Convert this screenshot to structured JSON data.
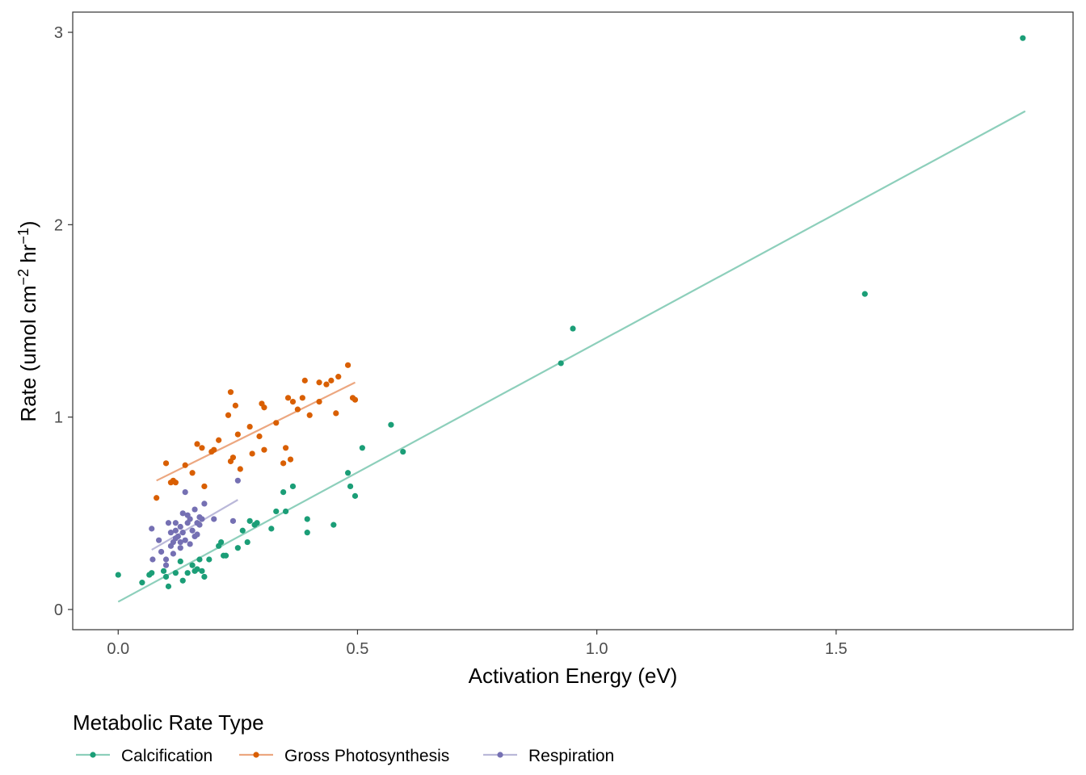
{
  "chart_data": {
    "type": "scatter",
    "xlabel": "Activation Energy (eV)",
    "ylabel": {
      "main": "Rate (umol cm",
      "sup1": "−2",
      "mid": " hr",
      "sup2": "−1",
      "end": ")"
    },
    "xlim": [
      -0.095,
      1.995
    ],
    "ylim": [
      -0.105,
      3.105
    ],
    "x_ticks": [
      0.0,
      0.5,
      1.0,
      1.5
    ],
    "x_tick_labels": [
      "0.0",
      "0.5",
      "1.0",
      "1.5"
    ],
    "y_ticks": [
      0,
      1,
      2,
      3
    ],
    "y_tick_labels": [
      "0",
      "1",
      "2",
      "3"
    ],
    "grid": false,
    "legend": {
      "title": "Metabolic Rate Type",
      "position": "bottom-left"
    },
    "series": [
      {
        "name": "Calcification",
        "color": "#1b9e77",
        "line_color": "#8dcfbb",
        "fit": [
          [
            0.0,
            0.04
          ],
          [
            1.895,
            2.59
          ]
        ],
        "points": [
          [
            0.0,
            0.18
          ],
          [
            0.05,
            0.14
          ],
          [
            0.065,
            0.18
          ],
          [
            0.07,
            0.19
          ],
          [
            0.095,
            0.2
          ],
          [
            0.1,
            0.17
          ],
          [
            0.105,
            0.12
          ],
          [
            0.12,
            0.19
          ],
          [
            0.13,
            0.25
          ],
          [
            0.135,
            0.15
          ],
          [
            0.145,
            0.19
          ],
          [
            0.155,
            0.23
          ],
          [
            0.16,
            0.2
          ],
          [
            0.165,
            0.21
          ],
          [
            0.17,
            0.26
          ],
          [
            0.175,
            0.2
          ],
          [
            0.18,
            0.17
          ],
          [
            0.19,
            0.26
          ],
          [
            0.21,
            0.33
          ],
          [
            0.215,
            0.35
          ],
          [
            0.22,
            0.28
          ],
          [
            0.225,
            0.28
          ],
          [
            0.25,
            0.32
          ],
          [
            0.26,
            0.41
          ],
          [
            0.27,
            0.35
          ],
          [
            0.275,
            0.46
          ],
          [
            0.285,
            0.44
          ],
          [
            0.29,
            0.45
          ],
          [
            0.32,
            0.42
          ],
          [
            0.33,
            0.51
          ],
          [
            0.345,
            0.61
          ],
          [
            0.35,
            0.51
          ],
          [
            0.365,
            0.64
          ],
          [
            0.395,
            0.47
          ],
          [
            0.395,
            0.4
          ],
          [
            0.45,
            0.44
          ],
          [
            0.48,
            0.71
          ],
          [
            0.485,
            0.64
          ],
          [
            0.495,
            0.59
          ],
          [
            0.51,
            0.84
          ],
          [
            0.57,
            0.96
          ],
          [
            0.595,
            0.82
          ],
          [
            0.925,
            1.28
          ],
          [
            0.95,
            1.46
          ],
          [
            1.56,
            1.64
          ],
          [
            1.89,
            2.97
          ]
        ]
      },
      {
        "name": "Gross Photosynthesis",
        "color": "#d95f02",
        "line_color": "#eca780",
        "fit": [
          [
            0.08,
            0.67
          ],
          [
            0.495,
            1.18
          ]
        ],
        "points": [
          [
            0.08,
            0.58
          ],
          [
            0.1,
            0.76
          ],
          [
            0.11,
            0.66
          ],
          [
            0.115,
            0.67
          ],
          [
            0.12,
            0.66
          ],
          [
            0.14,
            0.75
          ],
          [
            0.155,
            0.71
          ],
          [
            0.165,
            0.86
          ],
          [
            0.175,
            0.84
          ],
          [
            0.18,
            0.64
          ],
          [
            0.195,
            0.82
          ],
          [
            0.2,
            0.83
          ],
          [
            0.21,
            0.88
          ],
          [
            0.23,
            1.01
          ],
          [
            0.235,
            1.13
          ],
          [
            0.235,
            0.77
          ],
          [
            0.24,
            0.79
          ],
          [
            0.245,
            1.06
          ],
          [
            0.25,
            0.91
          ],
          [
            0.255,
            0.73
          ],
          [
            0.275,
            0.95
          ],
          [
            0.28,
            0.81
          ],
          [
            0.295,
            0.9
          ],
          [
            0.3,
            1.07
          ],
          [
            0.305,
            1.05
          ],
          [
            0.305,
            0.83
          ],
          [
            0.33,
            0.97
          ],
          [
            0.345,
            0.76
          ],
          [
            0.35,
            0.84
          ],
          [
            0.355,
            1.1
          ],
          [
            0.36,
            0.78
          ],
          [
            0.365,
            1.08
          ],
          [
            0.375,
            1.04
          ],
          [
            0.385,
            1.1
          ],
          [
            0.39,
            1.19
          ],
          [
            0.4,
            1.01
          ],
          [
            0.42,
            1.08
          ],
          [
            0.42,
            1.18
          ],
          [
            0.435,
            1.17
          ],
          [
            0.445,
            1.19
          ],
          [
            0.455,
            1.02
          ],
          [
            0.46,
            1.21
          ],
          [
            0.48,
            1.27
          ],
          [
            0.49,
            1.1
          ],
          [
            0.495,
            1.09
          ]
        ]
      },
      {
        "name": "Respiration",
        "color": "#7570b3",
        "line_color": "#bab8d9",
        "fit": [
          [
            0.07,
            0.31
          ],
          [
            0.25,
            0.57
          ]
        ],
        "points": [
          [
            0.07,
            0.42
          ],
          [
            0.072,
            0.26
          ],
          [
            0.085,
            0.36
          ],
          [
            0.09,
            0.3
          ],
          [
            0.1,
            0.26
          ],
          [
            0.1,
            0.23
          ],
          [
            0.105,
            0.45
          ],
          [
            0.11,
            0.4
          ],
          [
            0.11,
            0.33
          ],
          [
            0.115,
            0.29
          ],
          [
            0.115,
            0.35
          ],
          [
            0.12,
            0.37
          ],
          [
            0.12,
            0.41
          ],
          [
            0.12,
            0.45
          ],
          [
            0.125,
            0.38
          ],
          [
            0.13,
            0.43
          ],
          [
            0.13,
            0.35
          ],
          [
            0.13,
            0.32
          ],
          [
            0.135,
            0.4
          ],
          [
            0.135,
            0.5
          ],
          [
            0.14,
            0.36
          ],
          [
            0.145,
            0.49
          ],
          [
            0.14,
            0.61
          ],
          [
            0.145,
            0.45
          ],
          [
            0.15,
            0.34
          ],
          [
            0.15,
            0.47
          ],
          [
            0.155,
            0.41
          ],
          [
            0.16,
            0.38
          ],
          [
            0.16,
            0.52
          ],
          [
            0.165,
            0.45
          ],
          [
            0.165,
            0.39
          ],
          [
            0.17,
            0.44
          ],
          [
            0.17,
            0.48
          ],
          [
            0.175,
            0.47
          ],
          [
            0.18,
            0.55
          ],
          [
            0.2,
            0.47
          ],
          [
            0.24,
            0.46
          ],
          [
            0.25,
            0.67
          ]
        ]
      }
    ]
  }
}
